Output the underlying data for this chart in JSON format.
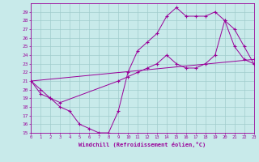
{
  "xlabel": "Windchill (Refroidissement éolien,°C)",
  "xlim": [
    0,
    23
  ],
  "ylim": [
    15,
    30
  ],
  "yticks": [
    15,
    16,
    17,
    18,
    19,
    20,
    21,
    22,
    23,
    24,
    25,
    26,
    27,
    28,
    29
  ],
  "xticks": [
    0,
    1,
    2,
    3,
    4,
    5,
    6,
    7,
    8,
    9,
    10,
    11,
    12,
    13,
    14,
    15,
    16,
    17,
    18,
    19,
    20,
    21,
    22,
    23
  ],
  "background_color": "#c8eaea",
  "line_color": "#990099",
  "grid_color": "#a0cccc",
  "curves": [
    {
      "x": [
        0,
        1,
        2,
        3,
        4,
        5,
        6,
        7,
        8,
        9,
        10,
        11,
        12,
        13,
        14,
        15,
        16,
        17,
        18,
        19,
        20,
        21,
        22,
        23
      ],
      "y": [
        21,
        20,
        19,
        18,
        17.5,
        16,
        15.5,
        15,
        15,
        17.5,
        22,
        24.5,
        25.5,
        26.5,
        28.5,
        29.5,
        28.5,
        28.5,
        28.5,
        29,
        28,
        25,
        23.5,
        23
      ]
    },
    {
      "x": [
        0,
        1,
        2,
        3,
        9,
        10,
        11,
        12,
        13,
        14,
        15,
        16,
        17,
        18,
        19,
        20,
        21,
        22,
        23
      ],
      "y": [
        21,
        19.5,
        19,
        18.5,
        21,
        21.5,
        22,
        22.5,
        23,
        24,
        23,
        22.5,
        22.5,
        23,
        24,
        28,
        27,
        25,
        23
      ]
    },
    {
      "x": [
        0,
        23
      ],
      "y": [
        21,
        23.5
      ]
    }
  ]
}
